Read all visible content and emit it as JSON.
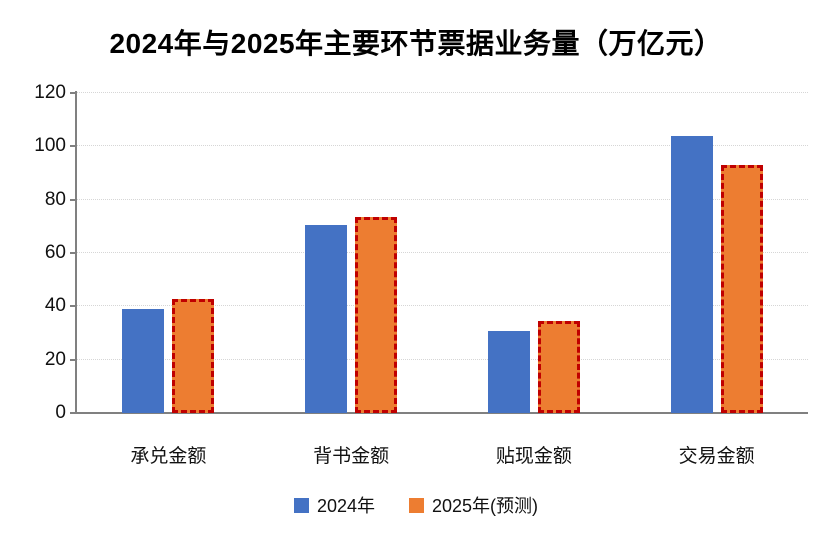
{
  "chart_data": {
    "type": "bar",
    "title": "2024年与2025年主要环节票据业务量（万亿元）",
    "categories": [
      "承兑金额",
      "背书金额",
      "贴现金额",
      "交易金额"
    ],
    "series": [
      {
        "name": "2024年",
        "color": "#4472C4",
        "style": "solid",
        "values": [
          38.5,
          70,
          30.5,
          103.5
        ]
      },
      {
        "name": "2025年(预测)",
        "color": "#ED7D31",
        "style": "dashed-red-border",
        "border_color": "#C00000",
        "values": [
          42.5,
          73,
          34,
          92.5
        ]
      }
    ],
    "ylabel": "",
    "xlabel": "",
    "ylim": [
      0,
      120
    ],
    "yticks": [
      0,
      20,
      40,
      60,
      80,
      100,
      120
    ],
    "grid": "horizontal-dotted",
    "legend_position": "bottom",
    "colors": {
      "axis": "#808080",
      "gridline": "#D6D6D6",
      "text": "#000000",
      "series_2024": "#4472C4",
      "series_2025": "#ED7D31",
      "forecast_border": "#C00000"
    }
  }
}
